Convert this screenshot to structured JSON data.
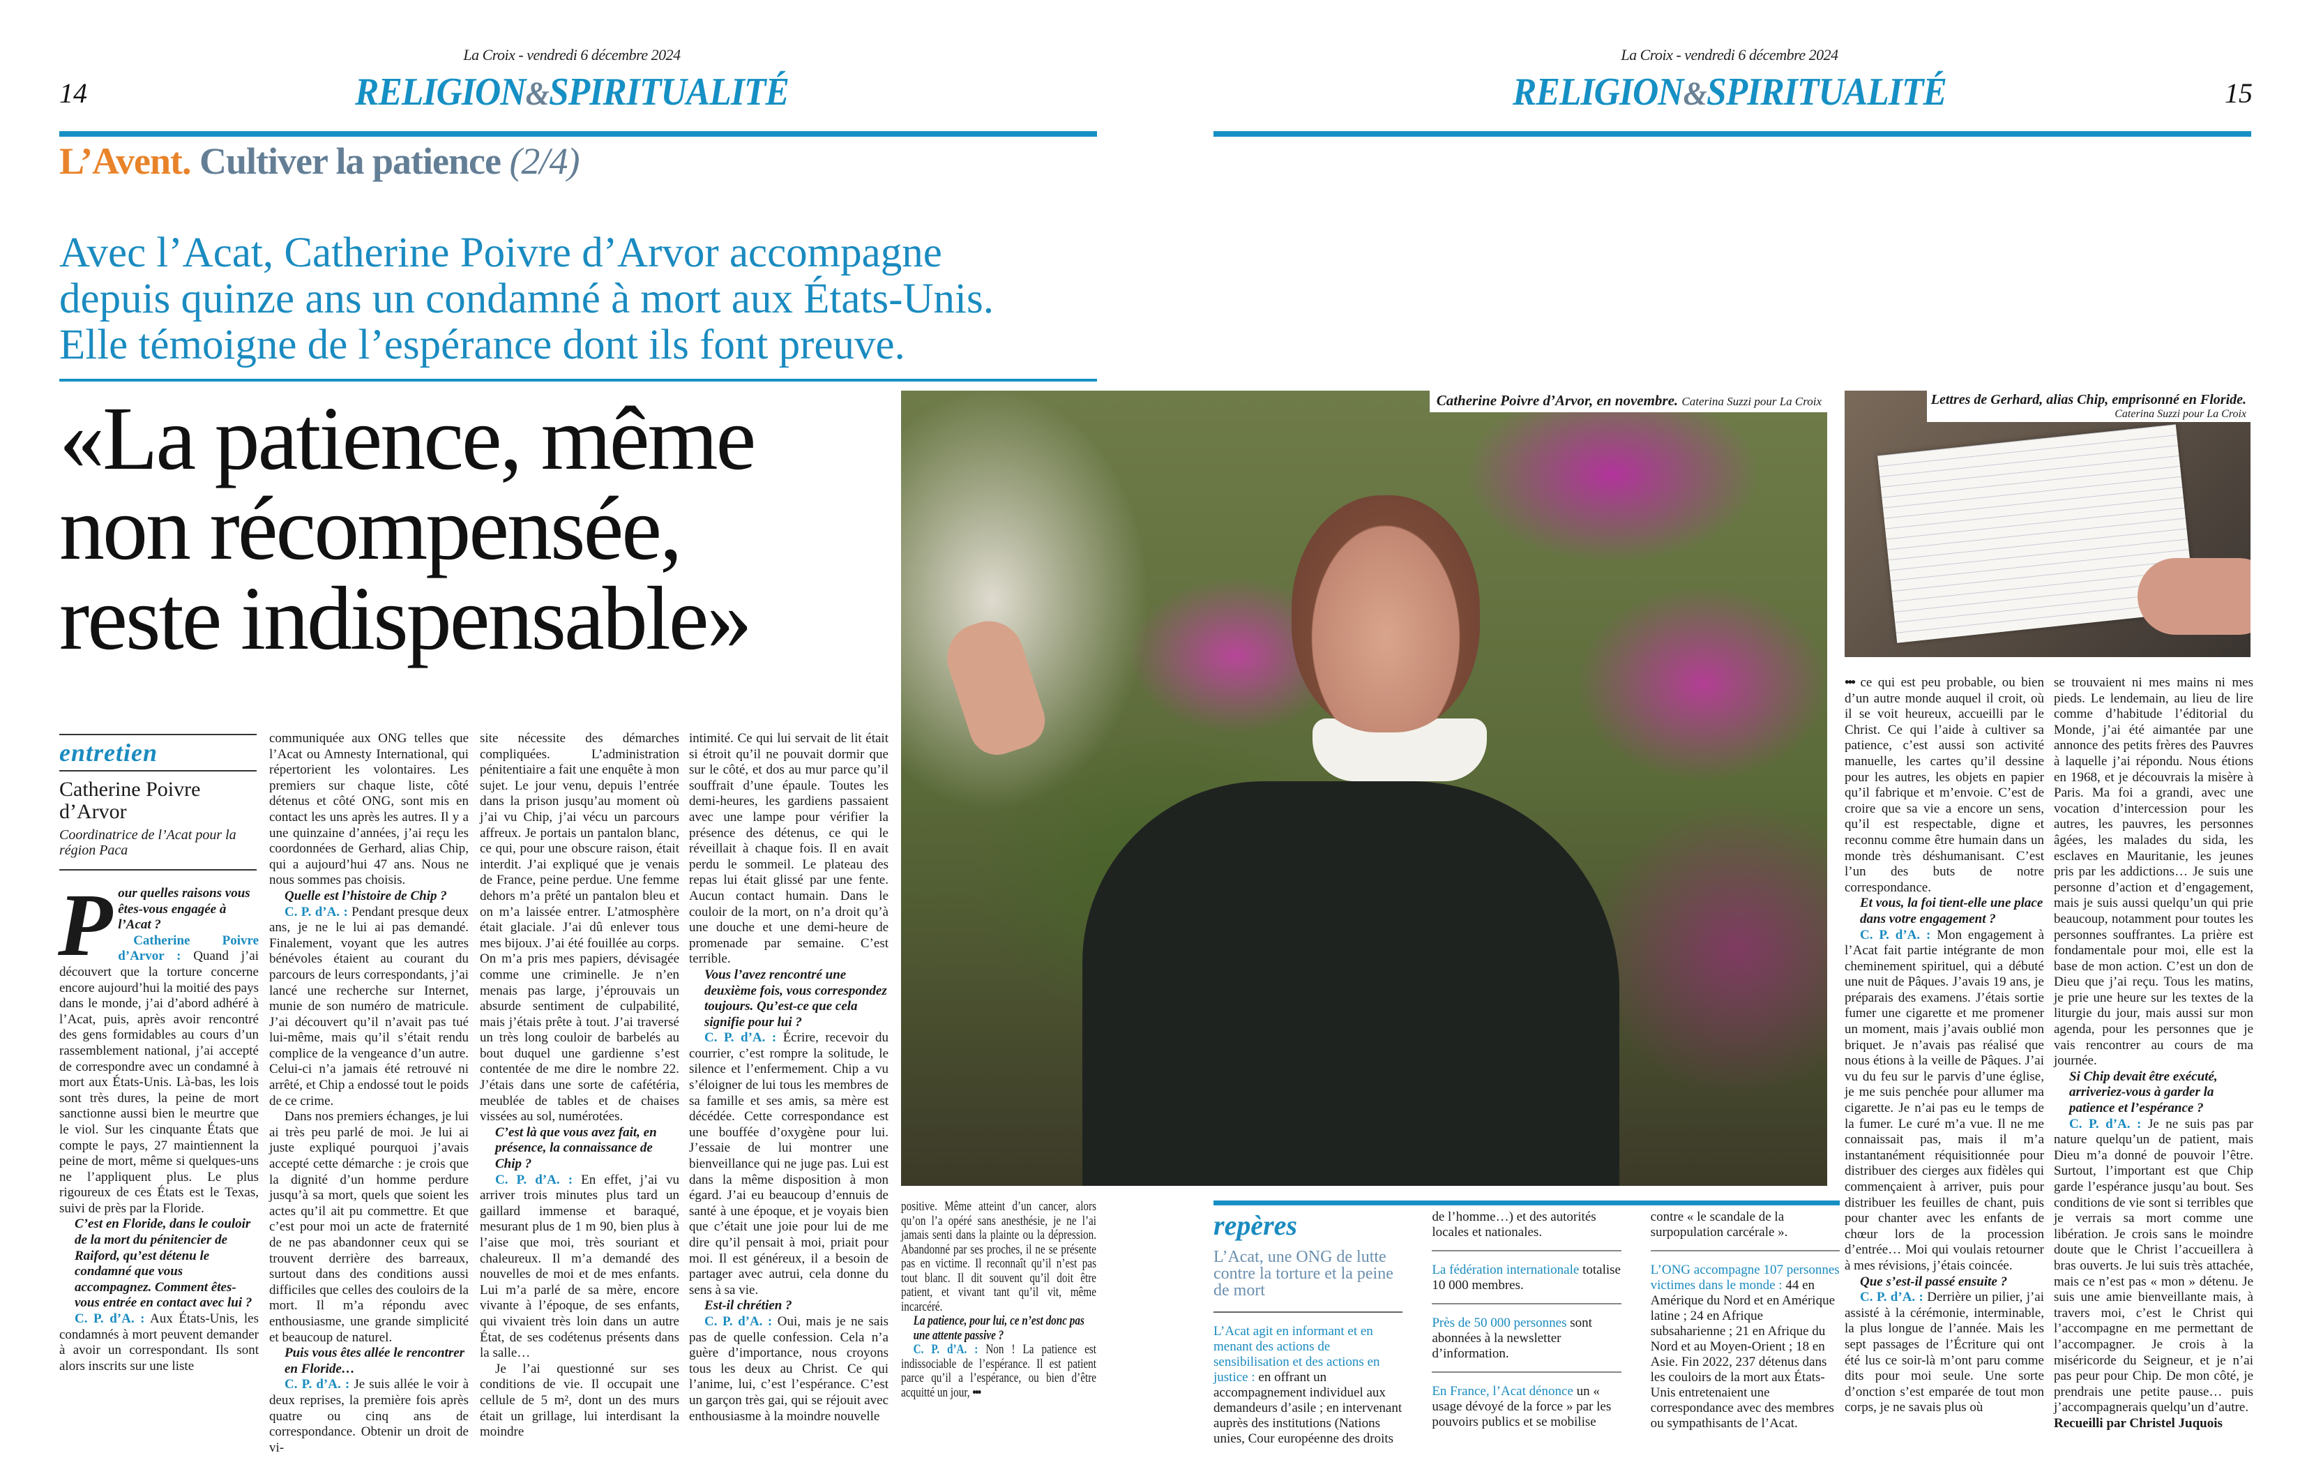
{
  "left_page": {
    "dateline": "La Croix - vendredi 6 décembre 2024",
    "folio": "14",
    "section": {
      "part1": "RELIGION",
      "amp": "&",
      "part2": "SPIRITUALITÉ"
    }
  },
  "right_page": {
    "dateline": "La Croix - vendredi 6 décembre 2024",
    "folio": "15",
    "section": {
      "part1": "RELIGION",
      "amp": "&",
      "part2": "SPIRITUALITÉ"
    }
  },
  "kicker": {
    "rubric": "L’Avent.",
    "series": "Cultiver la patience",
    "part": "(2/4)"
  },
  "standfirst": [
    "Avec l’Acat, Catherine Poivre d’Arvor accompagne",
    "depuis quinze ans un condamné à mort aux États-Unis.",
    "Elle témoigne de l’espérance dont ils font preuve."
  ],
  "headline": [
    "«La patience, même",
    "non récompensée,",
    "reste indispensable»"
  ],
  "photos": {
    "main": {
      "caption": "Catherine Poivre d’Arvor, en novembre.",
      "credit": "Caterina Suzzi pour La Croix"
    },
    "small": {
      "caption": "Lettres de Gerhard, alias Chip, emprisonné en Floride.",
      "credit": "Caterina Suzzi pour La Croix"
    }
  },
  "interview_header": {
    "tag": "entretien",
    "name": "Catherine Poivre d’Arvor",
    "role": "Coordinatrice de l’Acat pour la région Paca"
  },
  "colors": {
    "accent_blue": "#1690c4",
    "kicker_orange": "#e8832a",
    "kicker_grey": "#637e95"
  },
  "article": {
    "columns": [
      [
        {
          "t": "dropq",
          "drop": "P",
          "text": "our quelles raisons vous êtes-vous engagée à l’Acat ?"
        },
        {
          "t": "a",
          "sp": "Catherine Poivre d’Arvor :",
          "text": "Quand j’ai découvert que la torture concerne encore aujourd’hui la moitié des pays dans le monde, j’ai d’abord adhéré à l’Acat, puis, après avoir rencontré des gens formidables au cours d’un rassemblement national, j’ai accepté de correspondre avec un condamné à mort aux États-Unis. Là-bas, les lois sont très dures, la peine de mort sanctionne aussi bien le meurtre que le viol. Sur les cinquante États que compte le pays, 27 maintiennent la peine de mort, même si quelques-uns ne l’appliquent plus. Le plus rigoureux de ces États est le Texas, suivi de près par la Floride."
        },
        {
          "t": "q",
          "text": "C’est en Floride, dans le couloir de la mort du pénitencier de Raiford, qu’est détenu le condamné que vous accompagnez. Comment êtes-vous entrée en contact avec lui ?"
        },
        {
          "t": "a",
          "sp": "C. P. d’A. :",
          "text": "Aux États-Unis, les condamnés à mort peuvent demander à avoir un correspondant. Ils sont alors inscrits sur une liste"
        }
      ],
      [
        {
          "t": "c",
          "text": "communiquée aux ONG telles que l’Acat ou Amnesty International, qui répertorient les volontaires. Les premiers sur chaque liste, côté détenus et côté ONG, sont mis en contact les uns après les autres. Il y a une quinzaine d’années, j’ai reçu les coordonnées de Gerhard, alias Chip, qui a aujourd’hui 47 ans. Nous ne nous sommes pas choisis."
        },
        {
          "t": "q",
          "text": "Quelle est l’histoire de Chip ?"
        },
        {
          "t": "a",
          "sp": "C. P. d’A. :",
          "text": "Pendant presque deux ans, je ne le lui ai pas demandé. Finalement, voyant que les autres bénévoles étaient au courant du parcours de leurs correspondants, j’ai lancé une recherche sur Internet, munie de son numéro de matricule. J’ai découvert qu’il n’avait pas tué lui-même, mais qu’il s’était rendu complice de la vengeance d’un autre. Celui-ci n’a jamais été retrouvé ni arrêté, et Chip a endossé tout le poids de ce crime."
        },
        {
          "t": "p",
          "text": "Dans nos premiers échanges, je lui ai très peu parlé de moi. Je lui ai juste expliqué pourquoi j’avais accepté cette démarche : je crois que la dignité d’un homme perdure jusqu’à sa mort, quels que soient les actes qu’il ait pu commettre. Et que c’est pour moi un acte de fraternité de ne pas abandonner ceux qui se trouvent derrière des barreaux, surtout dans des conditions aussi difficiles que celles des couloirs de la mort. Il m’a répondu avec enthousiasme, une grande simplicité et beaucoup de naturel."
        },
        {
          "t": "q",
          "text": "Puis vous êtes allée le rencontrer en Floride…"
        },
        {
          "t": "a",
          "sp": "C. P. d’A. :",
          "text": "Je suis allée le voir à deux reprises, la première fois après quatre ou cinq ans de correspondance. Obtenir un droit de vi-"
        }
      ],
      [
        {
          "t": "c",
          "text": "site nécessite des démarches compliquées. L’administration pénitentiaire a fait une enquête à mon sujet. Le jour venu, depuis l’entrée dans la prison jusqu’au moment où j’ai vu Chip, j’ai vécu un parcours affreux. Je portais un pantalon blanc, ce qui, pour une obscure raison, était interdit. J’ai expliqué que je venais de France, peine perdue. Une femme dehors m’a prêté un pantalon bleu et on m’a laissée entrer. L’atmosphère était glaciale. J’ai dû enlever tous mes bijoux. J’ai été fouillée au corps. On m’a pris mes papiers, dévisagée comme une criminelle. Je n’en menais pas large, j’éprouvais un absurde sentiment de culpabilité, mais j’étais prête à tout. J’ai traversé un très long couloir de barbelés au bout duquel une gardienne s’est contentée de me dire le nombre 22. J’étais dans une sorte de cafétéria, meublée de tables et de chaises vissées au sol, numérotées."
        },
        {
          "t": "q",
          "text": "C’est là que vous avez fait, en présence, la connaissance de Chip ?"
        },
        {
          "t": "a",
          "sp": "C. P. d’A. :",
          "text": "En effet, j’ai vu arriver trois minutes plus tard un gaillard immense et baraqué, mesurant plus de 1 m 90, bien plus à l’aise que moi, très souriant et chaleureux. Il m’a demandé des nouvelles de moi et de mes enfants. Lui m’a parlé de sa mère, encore vivante à l’époque, de ses enfants, qui vivaient très loin dans un autre État, de ses codétenus présents dans la salle…"
        },
        {
          "t": "p",
          "text": "Je l’ai questionné sur ses conditions de vie. Il occupait une cellule de 5 m², dont un des murs était un grillage, lui interdisant la moindre"
        }
      ],
      [
        {
          "t": "c",
          "text": "intimité. Ce qui lui servait de lit était si étroit qu’il ne pouvait dormir que sur le côté, et dos au mur parce qu’il souffrait d’une épaule. Toutes les demi-heures, les gardiens passaient avec une lampe pour vérifier la présence des détenus, ce qui le réveillait à chaque fois. Il en avait perdu le sommeil. Le plateau des repas lui était glissé par une fente. Aucun contact humain. Dans le couloir de la mort, on n’a droit qu’à une douche et une demi-heure de promenade par semaine. C’est terrible."
        },
        {
          "t": "q",
          "text": "Vous l’avez rencontré une deuxième fois, vous correspondez toujours. Qu’est-ce que cela signifie pour lui ?"
        },
        {
          "t": "a",
          "sp": "C. P. d’A. :",
          "text": "Écrire, recevoir du courrier, c’est rompre la solitude, le silence et l’enfermement. Chip a vu s’éloigner de lui tous les membres de sa famille et ses amis, sa mère est décédée. Cette correspondance est une bouffée d’oxygène pour lui. J’essaie de lui montrer une bienveillance qui ne juge pas. Lui est dans la même disposition à mon égard. J’ai eu beaucoup d’ennuis de santé à une époque, et je voyais bien que c’était une joie pour lui de me dire qu’il pensait à moi, priait pour moi. Il est généreux, il a besoin de partager avec autrui, cela donne du sens à sa vie."
        },
        {
          "t": "q",
          "text": "Est-il chrétien ?"
        },
        {
          "t": "a",
          "sp": "C. P. d’A. :",
          "text": "Oui, mais je ne sais pas de quelle confession. Cela n’a guère d’importance, nous croyons tous les deux au Christ. Ce qui l’anime, lui, c’est l’espérance. C’est un garçon très gai, qui se réjouit avec enthousiasme à la moindre nouvelle"
        }
      ],
      [
        {
          "t": "c",
          "text": "positive. Même atteint d’un cancer, alors qu’on l’a opéré sans anesthésie, je ne l’ai jamais senti dans la plainte ou la dépression. Abandonné par ses proches, il ne se présente pas en victime. Il reconnaît qu’il n’est pas tout blanc. Il dit souvent qu’il doit être patient, et vivant tant qu’il vit, même incarcéré."
        },
        {
          "t": "q",
          "text": "La patience, pour lui, ce n’est donc pas une attente passive ?"
        },
        {
          "t": "a",
          "sp": "C. P. d’A. :",
          "text": "Non ! La patience est indissociable de l’espérance. Il est patient parce qu’il a l’espérance, ou bien d’être acquitté un jour,",
          "cont": "•••"
        }
      ],
      [
        {
          "t": "c",
          "lead": "•••",
          "text": "ce qui est peu probable, ou bien d’un autre monde auquel il croit, où il se voit heureux, accueilli par le Christ. Ce qui l’aide à cultiver sa patience, c’est aussi son activité manuelle, les cartes qu’il dessine pour les autres, les objets en papier qu’il fabrique et m’envoie. C’est de croire que sa vie a encore un sens, qu’il est respectable, digne et reconnu comme être humain dans un monde très déshumanisant. C’est l’un des buts de notre correspondance."
        },
        {
          "t": "q",
          "text": "Et vous, la foi tient-elle une place dans votre engagement ?"
        },
        {
          "t": "a",
          "sp": "C. P. d’A. :",
          "text": "Mon engagement à l’Acat fait partie intégrante de mon cheminement spirituel, qui a débuté une nuit de Pâques. J’avais 19 ans, je préparais des examens. J’étais sortie fumer une cigarette et me promener un moment, mais j’avais oublié mon briquet. Je n’avais pas réalisé que nous étions à la veille de Pâques. J’ai vu du feu sur le parvis d’une église, je me suis penchée pour allumer ma cigarette. Je n’ai pas eu le temps de la fumer. Le curé m’a vue. Il ne me connaissait pas, mais il m’a instantanément réquisitionnée pour distribuer des cierges aux fidèles qui commençaient à arriver, puis pour distribuer les feuilles de chant, puis pour chanter avec les enfants de chœur lors de la procession d’entrée… Moi qui voulais retourner à mes révisions, j’étais coincée."
        },
        {
          "t": "q",
          "text": "Que s’est-il passé ensuite ?"
        },
        {
          "t": "a",
          "sp": "C. P. d’A. :",
          "text": "Derrière un pilier, j’ai assisté à la cérémonie, interminable, la plus longue de l’année. Mais les sept passages de l’Écriture qui ont été lus ce soir-là m’ont paru comme dits pour moi seule. Une sorte d’onction s’est emparée de tout mon corps, je ne savais plus où"
        }
      ],
      [
        {
          "t": "c",
          "text": "se trouvaient ni mes mains ni mes pieds. Le lendemain, au lieu de lire comme d’habitude l’éditorial du Monde, j’ai été aimantée par une annonce des petits frères des Pauvres à laquelle j’ai répondu. Nous étions en 1968, et je découvrais la misère à Paris. Ma foi a grandi, avec une vocation d’intercession pour les autres, les pauvres, les personnes âgées, les malades du sida, les esclaves en Mauritanie, les jeunes pris par les addictions… Je suis une personne d’action et d’engagement, mais je suis aussi quelqu’un qui prie beaucoup, notamment pour toutes les personnes souffrantes. La prière est fondamentale pour moi, elle est la base de mon action. C’est un don de Dieu que j’ai reçu. Tous les matins, je prie une heure sur les textes de la liturgie du jour, mais aussi sur mon agenda, pour les personnes que je vais rencontrer au cours de ma journée."
        },
        {
          "t": "q",
          "text": "Si Chip devait être exécuté, arriveriez-vous à garder la patience et l’espérance ?"
        },
        {
          "t": "a",
          "sp": "C. P. d’A. :",
          "text": "Je ne suis pas par nature quelqu’un de patient, mais Dieu m’a donné de pouvoir l’être. Surtout, l’important est que Chip garde l’espérance jusqu’au bout. Ses conditions de vie sont si terribles que je verrais sa mort comme une libération. Je crois sans le moindre doute que le Christ l’accueillera à bras ouverts. Je lui suis très attachée, mais ce n’est pas « mon » détenu. Je suis une amie bienveillante mais, à travers moi, c’est le Christ qui l’accompagne en me permettant de l’accompagner. Je crois à la miséricorde du Seigneur, et je n’ai pas peur pour Chip. De mon côté, je prendrais une petite pause… puis j’accompagnerais quelqu’un d’autre."
        },
        {
          "t": "byline",
          "text": "Recueilli par Christel Juquois"
        }
      ]
    ]
  },
  "reperes": {
    "title": "repères",
    "subtitle": "L’Acat, une ONG de lutte contre la torture et la peine de mort",
    "items": [
      {
        "lead": "L’Acat agit en informant et en menant des actions de sensibilisation et des actions en justice :",
        "text": "en offrant un accompagnement individuel aux demandeurs d’asile ; en intervenant auprès des institutions (Nations unies, Cour européenne des droits de l’homme…) et des autorités locales et nationales."
      },
      {
        "lead": "La fédération internationale",
        "text": "totalise 10 000 membres."
      },
      {
        "lead": "Près de 50 000 personnes",
        "text": "sont abonnées à la newsletter d’information."
      },
      {
        "lead": "En France, l’Acat dénonce",
        "text": "un « usage dévoyé de la force » par les pouvoirs publics et se mobilise contre « le scandale de la surpopulation carcérale »."
      },
      {
        "lead": "L’ONG accompagne 107 personnes victimes dans le monde :",
        "text": "44 en Amérique du Nord et en Amérique latine ; 24 en Afrique subsaharienne ; 21 en Afrique du Nord et au Moyen-Orient ; 18 en Asie. Fin 2022, 237 détenus dans les couloirs de la mort aux États-Unis entretenaient une correspondance avec des membres ou sympathisants de l’Acat."
      }
    ]
  }
}
